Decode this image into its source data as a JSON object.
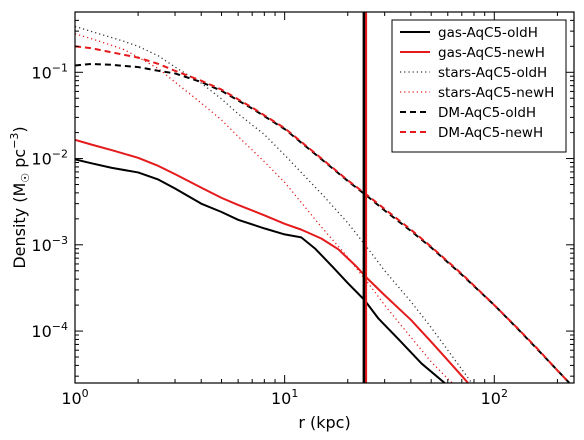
{
  "chart_data": {
    "type": "line",
    "xlabel": "r (kpc)",
    "ylabel_main": "Density (M",
    "ylabel_sub": "☉",
    "ylabel_unit": " pc",
    "ylabel_exp": "−3",
    "ylabel_close": ")",
    "xscale": "log",
    "yscale": "log",
    "xlim": [
      1,
      240
    ],
    "ylim": [
      2.5e-05,
      0.5
    ],
    "grid": false,
    "legend_position": "top-right",
    "x_ticks": [
      {
        "base": "10",
        "exp": "0",
        "value": 1
      },
      {
        "base": "10",
        "exp": "1",
        "value": 10
      },
      {
        "base": "10",
        "exp": "2",
        "value": 100
      }
    ],
    "y_ticks": [
      {
        "base": "10",
        "exp": "−4",
        "value": 0.0001
      },
      {
        "base": "10",
        "exp": "−3",
        "value": 0.001
      },
      {
        "base": "10",
        "exp": "−2",
        "value": 0.01
      },
      {
        "base": "10",
        "exp": "−1",
        "value": 0.1
      }
    ],
    "vertical_lines": [
      {
        "x": 24,
        "color": "#e41a1c"
      },
      {
        "x": 24,
        "color": "#000000"
      }
    ],
    "series": [
      {
        "name": "gas-AqC5-oldH",
        "color": "#000000",
        "style": "solid",
        "x": [
          1.0,
          1.2,
          1.5,
          2.0,
          2.5,
          3.0,
          4.0,
          5.0,
          6.0,
          8.0,
          10.0,
          12.0,
          14.0,
          17.0,
          20.0,
          24.0,
          28.0,
          35.0,
          45.0,
          58.0
        ],
        "y": [
          0.0098,
          0.0088,
          0.0078,
          0.0069,
          0.0057,
          0.0045,
          0.003,
          0.0024,
          0.00195,
          0.00155,
          0.00132,
          0.00122,
          0.0009,
          0.00055,
          0.00036,
          0.00023,
          0.00014,
          8e-05,
          4.2e-05,
          2.5e-05
        ]
      },
      {
        "name": "gas-AqC5-newH",
        "color": "#e41a1c",
        "style": "solid",
        "x": [
          1.0,
          1.2,
          1.5,
          2.0,
          2.5,
          3.0,
          4.0,
          5.0,
          6.0,
          8.0,
          10.0,
          12.0,
          15.0,
          18.0,
          22.0,
          25.0,
          30.0,
          40.0,
          50.0,
          62.0,
          75.0
        ],
        "y": [
          0.0165,
          0.0145,
          0.0125,
          0.0102,
          0.0082,
          0.0066,
          0.0046,
          0.0035,
          0.0029,
          0.0022,
          0.00175,
          0.0015,
          0.00118,
          0.00089,
          0.00056,
          0.0004,
          0.00026,
          0.000135,
          7.5e-05,
          4.2e-05,
          2.5e-05
        ]
      },
      {
        "name": "stars-AqC5-oldH",
        "color": "#333333",
        "style": "dotted",
        "x": [
          1.0,
          1.3,
          1.7,
          2.0,
          2.5,
          3.0,
          4.0,
          5.0,
          6.0,
          8.0,
          10.0,
          12.0,
          15.0,
          20.0,
          25.0,
          30.0,
          40.0,
          50.0,
          60.0,
          70.0,
          80.0
        ],
        "y": [
          0.34,
          0.28,
          0.23,
          0.2,
          0.155,
          0.115,
          0.075,
          0.049,
          0.033,
          0.019,
          0.011,
          0.0069,
          0.0039,
          0.0018,
          0.0009,
          0.0005,
          0.00022,
          0.00011,
          6e-05,
          3.6e-05,
          2.3e-05
        ]
      },
      {
        "name": "stars-AqC5-newH",
        "color": "#e41a1c",
        "style": "dotted",
        "x": [
          1.0,
          1.3,
          1.7,
          2.0,
          2.5,
          3.0,
          4.0,
          5.0,
          6.0,
          8.0,
          10.0,
          12.0,
          15.0,
          20.0,
          25.0,
          30.0,
          40.0,
          50.0,
          60.0,
          70.0
        ],
        "y": [
          0.28,
          0.23,
          0.185,
          0.15,
          0.11,
          0.077,
          0.044,
          0.028,
          0.018,
          0.0092,
          0.0053,
          0.0031,
          0.0016,
          0.00072,
          0.00036,
          0.0002,
          8.5e-05,
          4.4e-05,
          2.8e-05,
          2e-05
        ]
      },
      {
        "name": "DM-AqC5-oldH",
        "color": "#000000",
        "style": "dashed",
        "x": [
          1.0,
          1.2,
          1.5,
          2.0,
          2.5,
          3.0,
          4.0,
          5.0,
          7.0,
          10.0,
          15.0,
          20.0,
          25.0,
          30.0,
          40.0,
          50.0,
          70.0,
          100.0,
          130.0,
          160.0,
          200.0,
          240.0
        ],
        "y": [
          0.12,
          0.125,
          0.122,
          0.115,
          0.104,
          0.097,
          0.077,
          0.061,
          0.038,
          0.022,
          0.0098,
          0.0055,
          0.0036,
          0.0025,
          0.00145,
          0.00093,
          0.00045,
          0.0002,
          0.000105,
          6.2e-05,
          3.5e-05,
          2.2e-05
        ]
      },
      {
        "name": "DM-AqC5-newH",
        "color": "#e41a1c",
        "style": "dashed",
        "x": [
          1.0,
          1.2,
          1.5,
          2.0,
          2.5,
          3.0,
          4.0,
          5.0,
          7.0,
          10.0,
          15.0,
          20.0,
          25.0,
          30.0,
          40.0,
          50.0,
          70.0,
          100.0,
          130.0,
          160.0,
          200.0,
          240.0
        ],
        "y": [
          0.2,
          0.19,
          0.17,
          0.148,
          0.125,
          0.104,
          0.08,
          0.063,
          0.039,
          0.0225,
          0.01,
          0.0056,
          0.0037,
          0.0026,
          0.0015,
          0.00095,
          0.00046,
          0.0002,
          0.000106,
          6.3e-05,
          3.5e-05,
          2.2e-05
        ]
      }
    ]
  }
}
